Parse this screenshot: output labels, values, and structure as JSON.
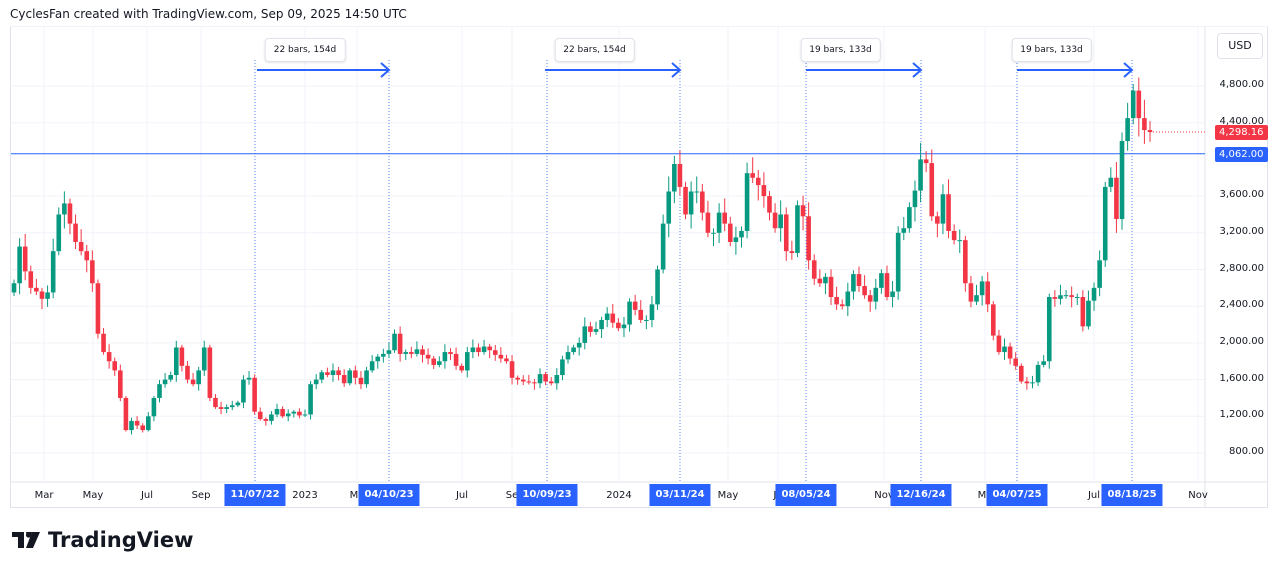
{
  "header": {
    "attribution": "CyclesFan created with TradingView.com, Sep 09, 2025 14:50 UTC"
  },
  "footer": {
    "logo_text": "TradingView"
  },
  "colors": {
    "up": "#089981",
    "down": "#f23645",
    "accent": "#2962ff",
    "grid": "#f0f3fa"
  },
  "chart_data": {
    "type": "candlestick",
    "interval": "weekly",
    "currency": "USD",
    "ylim": [
      400,
      5200
    ],
    "y_ticks": [
      "800.00",
      "1,200.00",
      "1,600.00",
      "2,000.00",
      "2,400.00",
      "2,800.00",
      "3,200.00",
      "3,600.00",
      "4,400.00",
      "4,800.00"
    ],
    "y_tick_values": [
      800,
      1200,
      1600,
      2000,
      2400,
      2800,
      3200,
      3600,
      4400,
      4800
    ],
    "x_ticks": [
      "Mar",
      "May",
      "Jul",
      "Sep",
      "2023",
      "Ma",
      "Jul",
      "Se",
      "2024",
      "May",
      "Ju",
      "Nov",
      "Ma",
      "Jul",
      "Nov"
    ],
    "last_price": {
      "label": "4,298.16",
      "value": 4298.16
    },
    "horizontal_line": {
      "label": "4,062.00",
      "value": 4062
    },
    "marked_dates": [
      "11/07/22",
      "04/10/23",
      "10/09/23",
      "03/11/24",
      "08/05/24",
      "12/16/24",
      "04/07/25",
      "08/18/25"
    ],
    "measurements": [
      {
        "from": "11/07/22",
        "to": "04/10/23",
        "label": "22 bars, 154d"
      },
      {
        "from": "10/09/23",
        "to": "03/11/24",
        "label": "22 bars, 154d"
      },
      {
        "from": "08/05/24",
        "to": "12/16/24",
        "label": "19 bars, 133d"
      },
      {
        "from": "04/07/25",
        "to": "08/18/25",
        "label": "19 bars, 133d"
      }
    ],
    "first_open": 2550,
    "closes": [
      2650,
      3050,
      2780,
      2600,
      2560,
      2480,
      2550,
      3000,
      3400,
      3520,
      3300,
      3100,
      3000,
      2900,
      2650,
      2100,
      1900,
      1800,
      1700,
      1400,
      1050,
      1150,
      1100,
      1050,
      1200,
      1400,
      1550,
      1600,
      1650,
      1950,
      1750,
      1600,
      1550,
      1700,
      1950,
      1400,
      1300,
      1280,
      1300,
      1320,
      1350,
      1600,
      1620,
      1250,
      1170,
      1150,
      1220,
      1280,
      1200,
      1230,
      1250,
      1210,
      1220,
      1550,
      1600,
      1680,
      1650,
      1700,
      1650,
      1560,
      1700,
      1620,
      1550,
      1700,
      1800,
      1850,
      1880,
      1920,
      2100,
      1880,
      1900,
      1880,
      1930,
      1870,
      1830,
      1760,
      1800,
      1900,
      1880,
      1750,
      1700,
      1900,
      1950,
      1900,
      1960,
      1920,
      1870,
      1830,
      1800,
      1620,
      1600,
      1580,
      1570,
      1560,
      1660,
      1580,
      1560,
      1650,
      1820,
      1900,
      1950,
      2000,
      2180,
      2120,
      2150,
      2250,
      2320,
      2220,
      2160,
      2200,
      2450,
      2360,
      2250,
      2250,
      2420,
      2800,
      3300,
      3650,
      3950,
      3700,
      3400,
      3650,
      3650,
      3420,
      3200,
      3200,
      3420,
      3300,
      3100,
      3150,
      3220,
      3850,
      3800,
      3720,
      3600,
      3420,
      3250,
      3400,
      3000,
      2980,
      3500,
      3380,
      2900,
      2700,
      2650,
      2720,
      2500,
      2420,
      2400,
      2560,
      2750,
      2620,
      2520,
      2450,
      2600,
      2760,
      2500,
      2560,
      3200,
      3250,
      3480,
      3660,
      4000,
      3960,
      3380,
      3300,
      3620,
      3220,
      3120,
      3120,
      2650,
      2450,
      2520,
      2670,
      2420,
      2080,
      1900,
      1960,
      1830,
      1750,
      1580,
      1560,
      1570,
      1760,
      1800,
      2500,
      2480,
      2520,
      2520,
      2500,
      2500,
      2180,
      2460,
      2600,
      2900,
      3700,
      3800,
      3350,
      4200,
      4450,
      4750,
      4450,
      4320,
      4298.16
    ]
  }
}
